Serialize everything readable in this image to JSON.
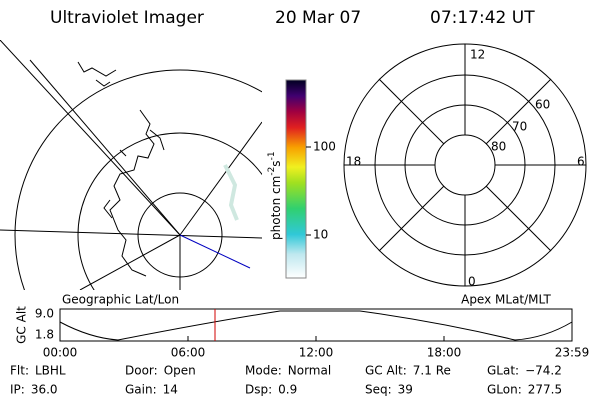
{
  "header": {
    "instrument": "Ultraviolet Imager",
    "date": "20 Mar 07",
    "time": "07:17:42 UT"
  },
  "left_map": {
    "label": "Geographic Lat/Lon"
  },
  "colorbar": {
    "unit": [
      "photon cm",
      "-2",
      "s",
      "-1"
    ],
    "ticks": [
      "100",
      "10"
    ]
  },
  "polar": {
    "label": "Apex MLat/MLT",
    "mlt": [
      "12",
      "18",
      "6",
      "0"
    ],
    "mlat": [
      "60",
      "70",
      "80"
    ]
  },
  "altitude_plot": {
    "ylabel": "GC Alt",
    "yticks": [
      "9.0",
      "1.8"
    ],
    "xticks": [
      "00:00",
      "06:00",
      "12:00",
      "18:00",
      "23:59"
    ]
  },
  "info": [
    [
      {
        "label": "Flt:",
        "value": "LBHL"
      },
      {
        "label": "Door:",
        "value": "Open"
      },
      {
        "label": "Mode:",
        "value": "Normal"
      },
      {
        "label": "GC Alt:",
        "value": "7.1 Re"
      },
      {
        "label": "GLat:",
        "value": "−74.2"
      }
    ],
    [
      {
        "label": "IP:",
        "value": "36.0"
      },
      {
        "label": "Gain:",
        "value": "14"
      },
      {
        "label": "Dsp:",
        "value": "0.9"
      },
      {
        "label": "Seq:",
        "value": "39"
      },
      {
        "label": "GLon:",
        "value": "277.5"
      }
    ]
  ]
}
